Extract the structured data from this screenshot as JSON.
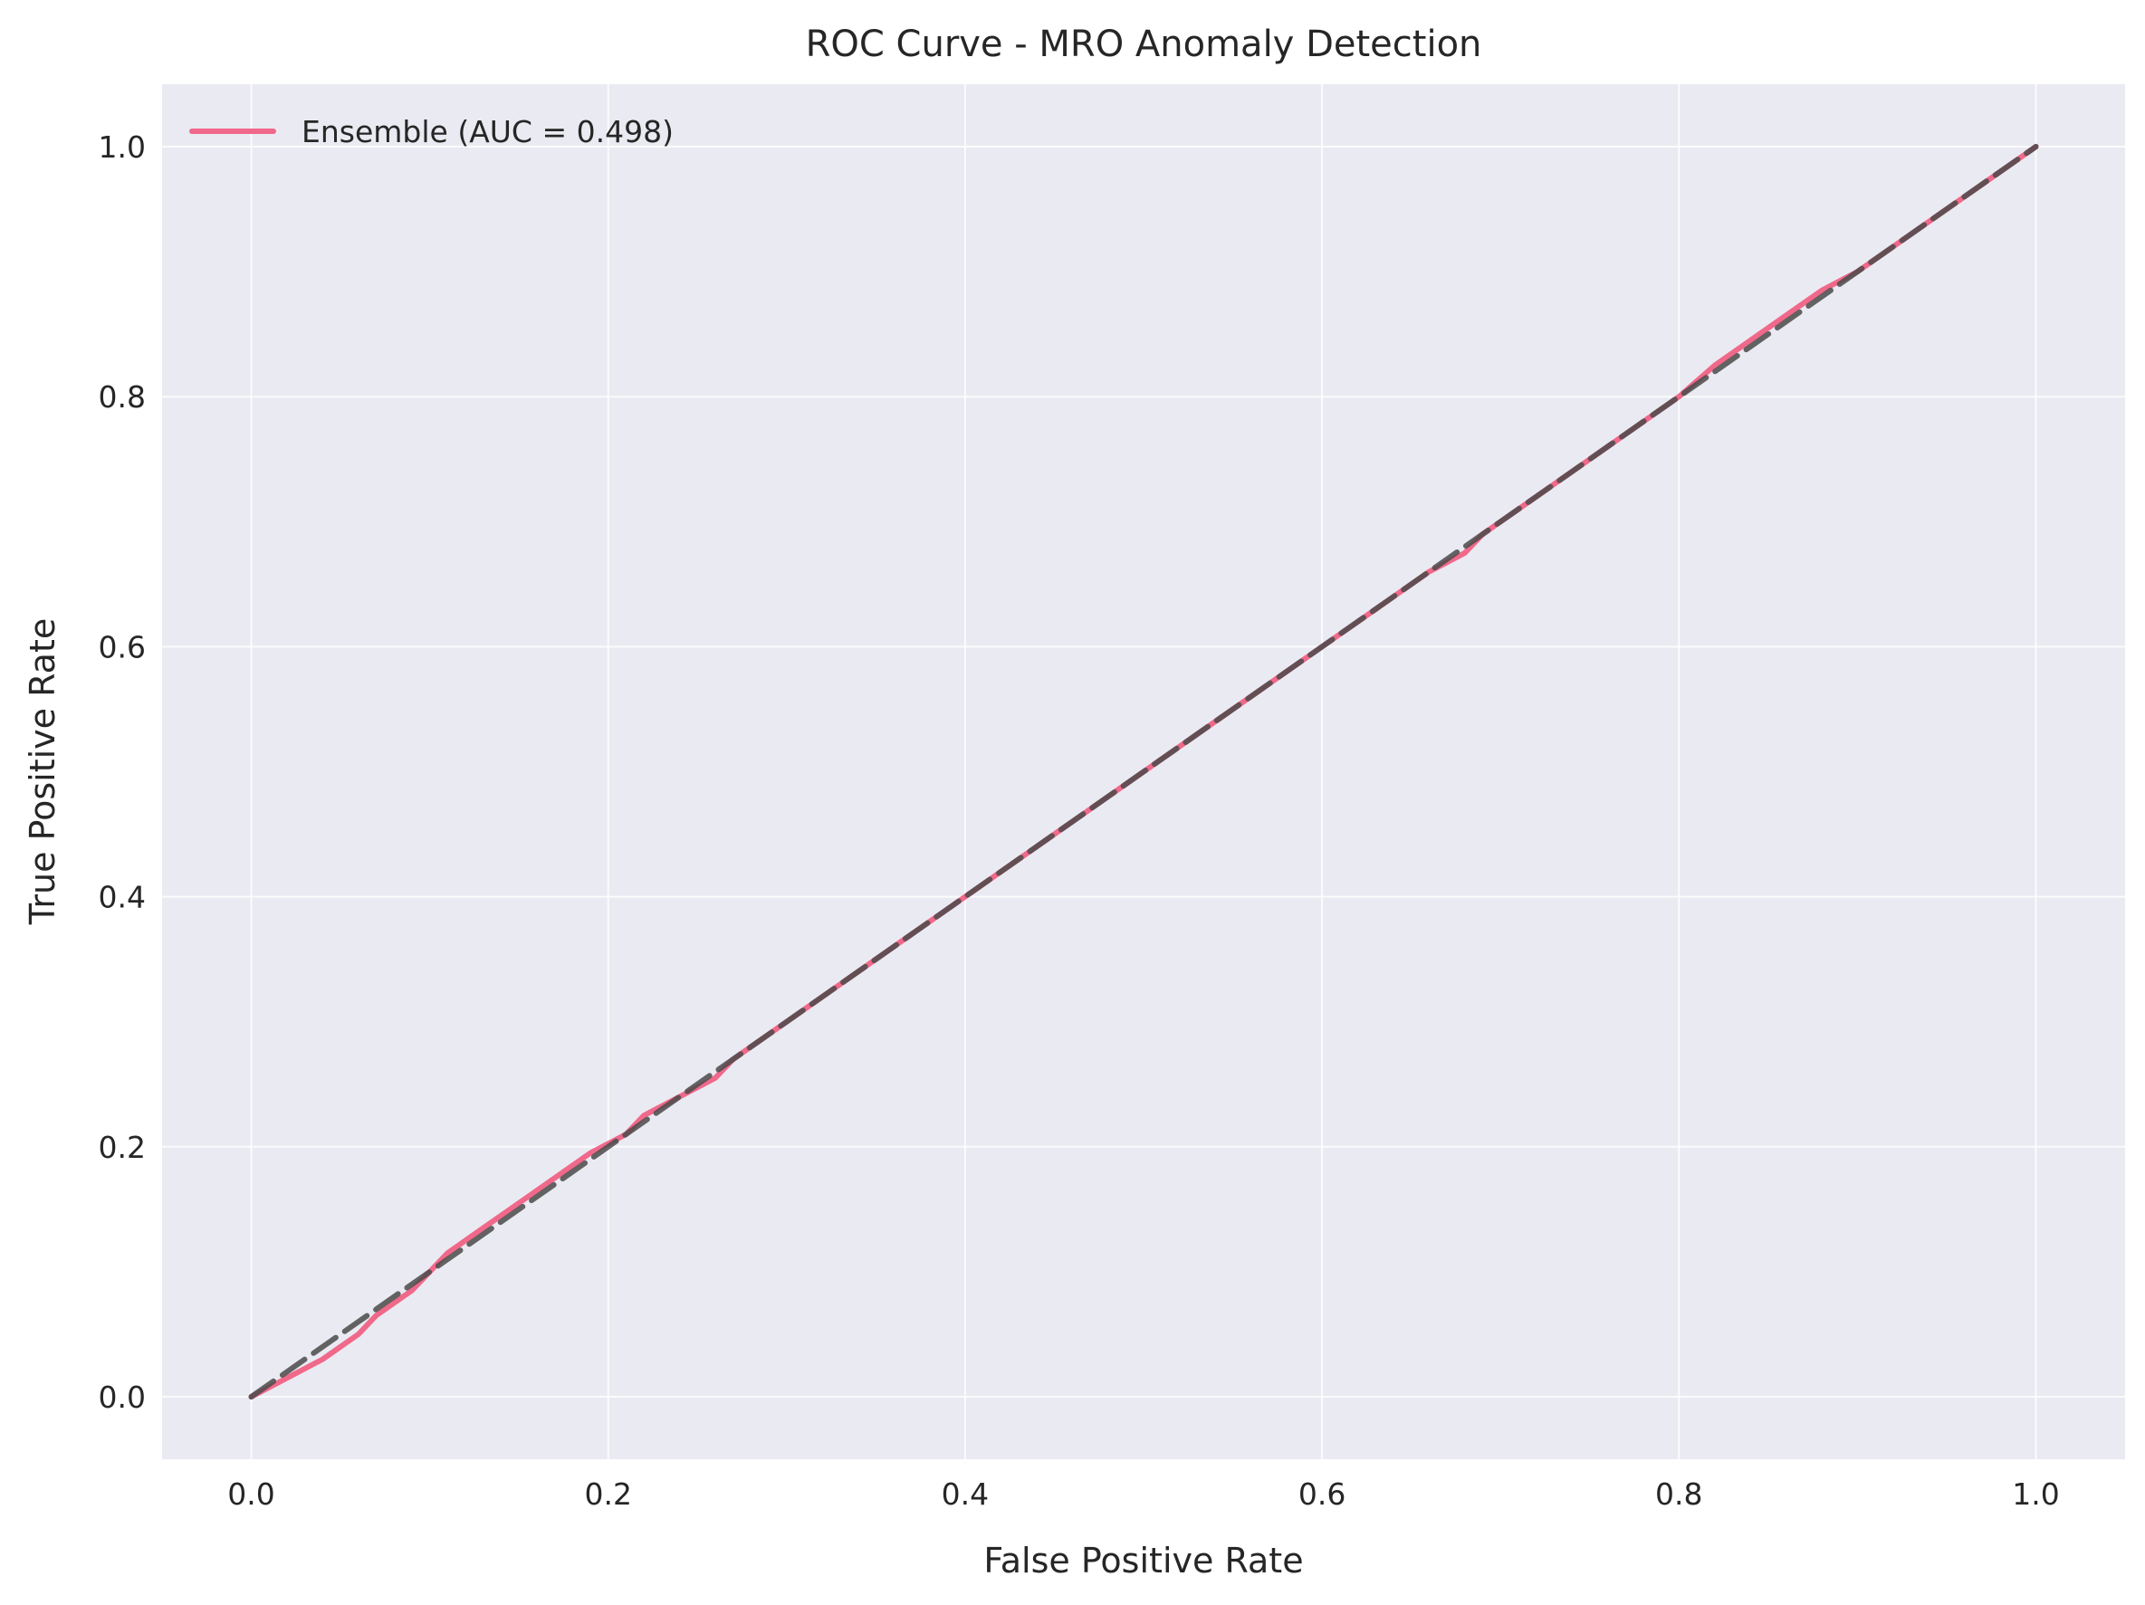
{
  "chart_data": {
    "type": "line",
    "title": "ROC Curve - MRO Anomaly Detection",
    "xlabel": "False Positive Rate",
    "ylabel": "True Positive Rate",
    "xlim": [
      -0.05,
      1.05
    ],
    "ylim": [
      -0.05,
      1.05
    ],
    "x_ticks": [
      "0.0",
      "0.2",
      "0.4",
      "0.6",
      "0.8",
      "1.0"
    ],
    "y_ticks": [
      "0.0",
      "0.2",
      "0.4",
      "0.6",
      "0.8",
      "1.0"
    ],
    "grid": true,
    "legend_position": "top-left",
    "series": [
      {
        "name": "Ensemble (AUC = 0.498)",
        "color": "#f0698a",
        "line_style": "solid",
        "x": [
          0.0,
          0.02,
          0.04,
          0.06,
          0.07,
          0.09,
          0.1,
          0.11,
          0.13,
          0.15,
          0.17,
          0.19,
          0.21,
          0.22,
          0.24,
          0.26,
          0.27,
          0.29,
          0.31,
          0.33,
          0.35,
          0.37,
          0.39,
          0.41,
          0.43,
          0.45,
          0.47,
          0.49,
          0.51,
          0.53,
          0.55,
          0.57,
          0.59,
          0.61,
          0.62,
          0.64,
          0.66,
          0.68,
          0.69,
          0.7,
          0.72,
          0.74,
          0.76,
          0.78,
          0.8,
          0.82,
          0.84,
          0.86,
          0.88,
          0.9,
          0.91,
          0.93,
          0.95,
          0.97,
          0.99,
          1.0
        ],
        "y": [
          0.0,
          0.015,
          0.03,
          0.05,
          0.065,
          0.085,
          0.1,
          0.115,
          0.135,
          0.155,
          0.175,
          0.195,
          0.21,
          0.225,
          0.24,
          0.255,
          0.27,
          0.29,
          0.31,
          0.33,
          0.35,
          0.37,
          0.39,
          0.41,
          0.43,
          0.45,
          0.47,
          0.49,
          0.51,
          0.53,
          0.55,
          0.57,
          0.59,
          0.61,
          0.62,
          0.64,
          0.66,
          0.675,
          0.69,
          0.7,
          0.72,
          0.74,
          0.76,
          0.78,
          0.8,
          0.825,
          0.845,
          0.865,
          0.885,
          0.9,
          0.91,
          0.93,
          0.95,
          0.97,
          0.99,
          1.0
        ]
      },
      {
        "name": "",
        "color": "#4a4a4a",
        "line_style": "dashed",
        "x": [
          0.0,
          1.0
        ],
        "y": [
          0.0,
          1.0
        ]
      }
    ]
  }
}
